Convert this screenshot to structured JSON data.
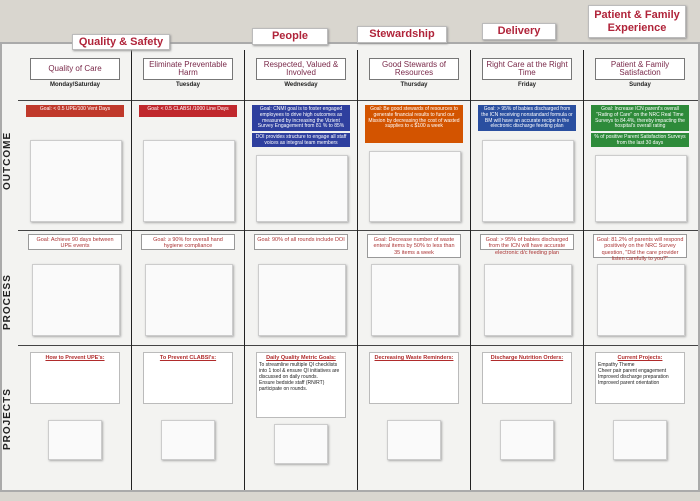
{
  "header_tags": [
    "Quality & Safety",
    "People",
    "Stewardship",
    "Delivery",
    "Patient & Family Experience"
  ],
  "row_labels": [
    "OUTCOME",
    "PROCESS",
    "PROJECTS"
  ],
  "columns": [
    {
      "title": "Quality of Care",
      "day": "Monday/Saturday",
      "outcome_goals": [
        "Goal: < 0.5 UPE/100 Vent Days"
      ],
      "process_goal": "Goal: Achieve 90 days between UPE events",
      "project_title": "How to Prevent UPE's:",
      "project_items": []
    },
    {
      "title": "Eliminate Preventable Harm",
      "day": "Tuesday",
      "outcome_goals": [
        "Goal: < 0.5 CLABSI /1000 Line Days"
      ],
      "process_goal": "Goal: ≥ 90% for overall hand hygiene compliance",
      "project_title": "To Prevent CLABSI's:",
      "project_items": []
    },
    {
      "title": "Respected, Valued & Involved",
      "day": "Wednesday",
      "outcome_goals": [
        "Goal: CNMI goal is to foster engaged employees to drive high outcomes as measured by increasing the Vizient Survey Engagement from 81 % to 85%",
        "DOI provides structure to engage all staff voices as integral team members"
      ],
      "process_goal": "Goal: 90% of all rounds include DOI",
      "project_title": "Daily Quality Metric Goals:",
      "project_items": [
        "To streamline multiple QI checklists into 1 tool & ensure QI initiatives are discussed on daily rounds.",
        "Ensure bedside staff (RN/RT) participate on rounds."
      ]
    },
    {
      "title": "Good Stewards of Resources",
      "day": "Thursday",
      "outcome_goals": [
        "Goal: Be good stewards of resources to generate financial results to fund our Mission by decreasing the cost of wasted supplies to ≤ $100 a week"
      ],
      "process_goal": "Goal: Decrease number of waste enteral items by 50% to less than 35 items a week",
      "project_title": "Decreasing Waste Reminders:",
      "project_items": []
    },
    {
      "title": "Right Care at the Right Time",
      "day": "Friday",
      "outcome_goals": [
        "Goal: > 95% of babies discharged from the ICN receiving nonstandard formula or BM will have an accurate recipe in the electronic discharge feeding plan"
      ],
      "process_goal": "Goal: > 95% of babies discharged from the ICN will have accurate electronic d/c feeding plan",
      "project_title": "Discharge Nutrition Orders:",
      "project_items": []
    },
    {
      "title": "Patient & Family Satisfaction",
      "day": "Sunday",
      "outcome_goals": [
        "Goal: Increase ICN parent's overall \"Rating of Care\" on the NRC Real Time Surveys to 84.4%, thereby impacting the hospital's overall rating",
        "% of positive Parent Satisfaction Surveys from the last 30 days"
      ],
      "process_goal": "Goal: 81.2% of parents will respond positively on the NRC Survey question, \"Did the care provider listen carefully to you?\"",
      "project_title": "Current Projects:",
      "project_items": [
        "Empathy Theme",
        "Cheer pair parent engagement",
        "Improved discharge preparation",
        "Improved parent orientation"
      ]
    }
  ]
}
